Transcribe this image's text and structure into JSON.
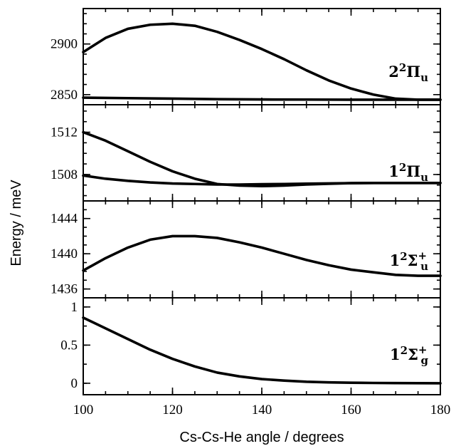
{
  "chart_data": {
    "type": "line",
    "xlabel": "Cs-Cs-He angle / degrees",
    "ylabel": "Energy / meV",
    "xlim": [
      100,
      180
    ],
    "x_ticks": [
      "100",
      "120",
      "140",
      "160",
      "180"
    ],
    "x_minor_step": 5,
    "grid": false,
    "panels": [
      {
        "state": {
          "main": "2",
          "sup": "2",
          "sym": "Π",
          "sub": "u",
          "sub_sup": ""
        },
        "ylim": [
          2840,
          2935
        ],
        "y_ticks": [
          {
            "v": 2850,
            "label": "2850"
          },
          {
            "v": 2900,
            "label": "2900"
          }
        ],
        "y_minor_step": 10,
        "series": [
          {
            "x": [
              100,
              105,
              110,
              115,
              120,
              125,
              130,
              135,
              140,
              145,
              150,
              155,
              160,
              165,
              170,
              175,
              180
            ],
            "y": [
              2892,
              2906,
              2915,
              2919,
              2920,
              2918,
              2912,
              2904,
              2895,
              2885,
              2874,
              2864,
              2856,
              2850,
              2846,
              2845,
              2845
            ]
          },
          {
            "x": [
              100,
              110,
              120,
              130,
              140,
              150,
              160,
              170,
              180
            ],
            "y": [
              2847,
              2846.5,
              2846,
              2845.5,
              2845.2,
              2845.1,
              2845,
              2845,
              2845
            ]
          }
        ]
      },
      {
        "state": {
          "main": "1",
          "sup": "2",
          "sym": "Π",
          "sub": "u",
          "sub_sup": ""
        },
        "ylim": [
          1505.5,
          1514.6
        ],
        "y_ticks": [
          {
            "v": 1508,
            "label": "1508"
          },
          {
            "v": 1512,
            "label": "1512"
          }
        ],
        "y_minor_step": 1,
        "series": [
          {
            "x": [
              100,
              105,
              110,
              115,
              120,
              125,
              130,
              135,
              140,
              145,
              150,
              155,
              160,
              165,
              170,
              175,
              180
            ],
            "y": [
              1512.0,
              1511.2,
              1510.2,
              1509.2,
              1508.3,
              1507.6,
              1507.1,
              1506.95,
              1506.9,
              1506.95,
              1507.05,
              1507.12,
              1507.18,
              1507.2,
              1507.2,
              1507.2,
              1507.2
            ]
          },
          {
            "x": [
              100,
              105,
              110,
              115,
              120,
              125,
              130,
              135,
              140,
              145,
              150,
              155,
              160,
              165,
              170,
              175,
              180
            ],
            "y": [
              1507.9,
              1507.6,
              1507.4,
              1507.25,
              1507.15,
              1507.1,
              1507.05,
              1507.05,
              1507.08,
              1507.1,
              1507.13,
              1507.16,
              1507.18,
              1507.2,
              1507.2,
              1507.2,
              1507.2
            ]
          }
        ]
      },
      {
        "state": {
          "main": "1",
          "sup": "2",
          "sym": "Σ",
          "sub": "u",
          "sub_sup": "+"
        },
        "ylim": [
          1435.0,
          1446.0
        ],
        "y_ticks": [
          {
            "v": 1436,
            "label": "1436"
          },
          {
            "v": 1440,
            "label": "1440"
          },
          {
            "v": 1444,
            "label": "1444"
          }
        ],
        "y_minor_step": 1,
        "series": [
          {
            "x": [
              100,
              105,
              110,
              115,
              120,
              125,
              130,
              135,
              140,
              145,
              150,
              155,
              160,
              165,
              170,
              175,
              180
            ],
            "y": [
              1438.1,
              1439.5,
              1440.7,
              1441.6,
              1442.0,
              1442.0,
              1441.8,
              1441.3,
              1440.7,
              1440.0,
              1439.3,
              1438.7,
              1438.2,
              1437.9,
              1437.6,
              1437.5,
              1437.5
            ]
          }
        ]
      },
      {
        "state": {
          "main": "1",
          "sup": "2",
          "sym": "Σ",
          "sub": "g",
          "sub_sup": "+"
        },
        "ylim": [
          -0.15,
          1.12
        ],
        "y_ticks": [
          {
            "v": 0,
            "label": "0"
          },
          {
            "v": 0.5,
            "label": "0.5"
          },
          {
            "v": 1,
            "label": "1"
          }
        ],
        "y_minor_step": 0.25,
        "series": [
          {
            "x": [
              100,
              105,
              110,
              115,
              120,
              125,
              130,
              135,
              140,
              145,
              150,
              155,
              160,
              165,
              170,
              175,
              180
            ],
            "y": [
              0.86,
              0.72,
              0.58,
              0.44,
              0.32,
              0.22,
              0.14,
              0.09,
              0.055,
              0.035,
              0.02,
              0.012,
              0.007,
              0.004,
              0.002,
              0.001,
              0.0
            ]
          }
        ]
      }
    ]
  }
}
